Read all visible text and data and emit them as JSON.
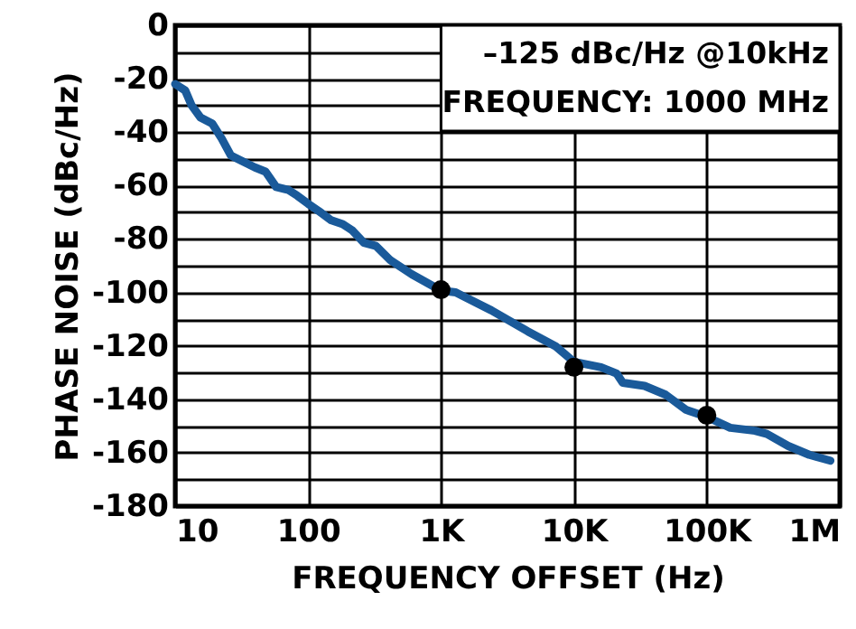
{
  "chart_data": {
    "type": "line",
    "xlabel": "FREQUENCY OFFSET (Hz)",
    "ylabel": "PHASE NOISE (dBc/Hz)",
    "log": "x",
    "grid": true,
    "line_style": "solid",
    "marker": "none",
    "xlim": [
      10,
      1000000
    ],
    "ylim": [
      -180,
      0
    ],
    "xticks": [
      {
        "value": 10,
        "label": "10"
      },
      {
        "value": 100,
        "label": "100"
      },
      {
        "value": 1000,
        "label": "1K"
      },
      {
        "value": 10000,
        "label": "10K"
      },
      {
        "value": 100000,
        "label": "100K"
      },
      {
        "value": 1000000,
        "label": "1M"
      }
    ],
    "yticks": [
      -180,
      {
        "value": -170,
        "label": null
      },
      -160,
      {
        "value": -150,
        "label": null
      },
      -140,
      {
        "value": -130,
        "label": null
      },
      -120,
      {
        "value": -110,
        "label": null
      },
      -100,
      {
        "value": -90,
        "label": null
      },
      -80,
      {
        "value": -70,
        "label": null
      },
      -60,
      {
        "value": -50,
        "label": null
      },
      -40,
      {
        "value": -30,
        "label": null
      },
      -20,
      {
        "value": -10,
        "label": null
      },
      0
    ],
    "annotations": [
      "–125 dBc/Hz @10kHz",
      "FREQUENCY: 1000 MHz"
    ],
    "series": [
      {
        "color": "#1a5a9a",
        "x": [
          10,
          11.9,
          13.3,
          15.5,
          19,
          22.4,
          26.2,
          32.4,
          39.8,
          47.9,
          57.5,
          70.8,
          83,
          100,
          120,
          148,
          182,
          214,
          263,
          324,
          417,
          603,
          1000,
          1290,
          2390,
          4500,
          7300,
          10000,
          16000,
          21000,
          23300,
          34000,
          49000,
          70000,
          100000,
          150000,
          230000,
          283000,
          410000,
          590000,
          850000
        ],
        "values": [
          -22,
          -24.4,
          -30,
          -34.5,
          -36.8,
          -42.4,
          -48.7,
          -51,
          -53.2,
          -54.8,
          -60.5,
          -61.6,
          -63.8,
          -66.8,
          -69.5,
          -72.9,
          -74.4,
          -76.7,
          -81.4,
          -82.6,
          -88,
          -93.2,
          -99.3,
          -100,
          -106.7,
          -114.6,
          -120.2,
          -126,
          -128,
          -130.4,
          -133.8,
          -135,
          -138.3,
          -144,
          -146.6,
          -150.7,
          -151.8,
          -153,
          -157.5,
          -160.8,
          -163
        ]
      },
      {
        "type": "scatter",
        "marker": "circle",
        "color": "#000000",
        "x": [
          1000,
          10000,
          100000
        ],
        "values": [
          -99,
          -128,
          -146
        ]
      }
    ]
  }
}
